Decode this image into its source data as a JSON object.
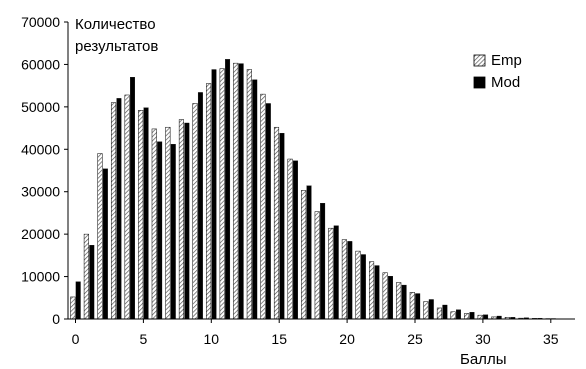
{
  "chart_data": {
    "type": "bar",
    "title": "",
    "ylabel_line1": "Количество",
    "ylabel_line2": "результатов",
    "xlabel": "Баллы",
    "ylim": [
      0,
      70000
    ],
    "y_ticks": [
      0,
      10000,
      20000,
      30000,
      40000,
      50000,
      60000,
      70000
    ],
    "x_ticks": [
      0,
      5,
      10,
      15,
      20,
      25,
      30,
      35
    ],
    "grid": false,
    "legend_position": "top-right",
    "categories": [
      0,
      1,
      2,
      3,
      4,
      5,
      6,
      7,
      8,
      9,
      10,
      11,
      12,
      13,
      14,
      15,
      16,
      17,
      18,
      19,
      20,
      21,
      22,
      23,
      24,
      25,
      26,
      27,
      28,
      29,
      30,
      31,
      32,
      33,
      34,
      35,
      36
    ],
    "series": [
      {
        "name": "Emp",
        "pattern": "hatched",
        "values": [
          5200,
          20000,
          39000,
          51000,
          52800,
          49200,
          44800,
          45200,
          47000,
          50800,
          55500,
          59000,
          60300,
          58800,
          53000,
          45200,
          37700,
          30300,
          25300,
          21400,
          18700,
          16000,
          13500,
          10900,
          8600,
          6300,
          4100,
          2600,
          1700,
          1300,
          900,
          500,
          400,
          200,
          150,
          100,
          50
        ]
      },
      {
        "name": "Mod",
        "pattern": "solid",
        "color": "#000000",
        "values": [
          8800,
          17400,
          35400,
          52000,
          57000,
          49800,
          41800,
          41200,
          46200,
          53400,
          58800,
          61200,
          60200,
          56400,
          50800,
          43800,
          37300,
          31400,
          27300,
          22000,
          18300,
          15200,
          12600,
          10100,
          8000,
          6000,
          4600,
          3300,
          2200,
          1600,
          1000,
          700,
          400,
          300,
          200,
          120,
          60
        ]
      }
    ]
  }
}
